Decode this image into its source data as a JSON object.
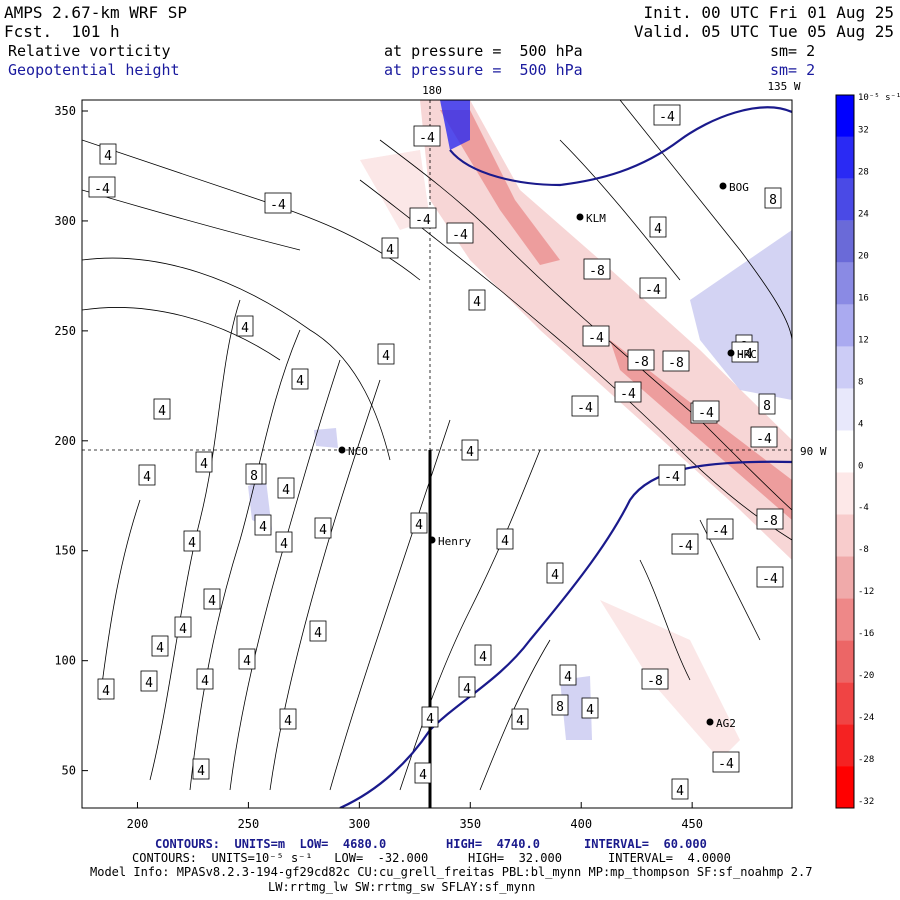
{
  "header": {
    "model": "AMPS 2.67-km WRF SP",
    "fcst": "Fcst.  101 h",
    "init": "Init. 00 UTC Fri 01 Aug 25",
    "valid": "Valid. 05 UTC Tue 05 Aug 25",
    "field1": "Relative vorticity",
    "field2": "Geopotential height",
    "pressure1": "at pressure =  500 hPa",
    "pressure2": "at pressure =  500 hPa",
    "sm1": "sm= 2",
    "sm2": "sm= 2"
  },
  "map": {
    "meridian_180": "180",
    "meridian_135": "135 W",
    "meridian_90": "90 W",
    "stations": [
      "NCO",
      "Henry",
      "KLM",
      "BOG",
      "HRC",
      "AG2"
    ]
  },
  "axes": {
    "x_ticks": [
      "200",
      "250",
      "300",
      "350",
      "400",
      "450"
    ],
    "y_ticks": [
      "350",
      "300",
      "250",
      "200",
      "150",
      "100",
      "50"
    ],
    "x_range": [
      175,
      495
    ],
    "y_range": [
      33,
      355
    ]
  },
  "colorbar": {
    "unit": "10⁻⁵ s⁻¹",
    "labels": [
      "32",
      "28",
      "24",
      "20",
      "16",
      "12",
      "8",
      "4",
      "0",
      "-4",
      "-8",
      "-12",
      "-16",
      "-20",
      "-24",
      "-28",
      "-32"
    ],
    "colors": [
      "#0000ff",
      "#2a2af4",
      "#4a4ae6",
      "#6a6ad8",
      "#8a8ae4",
      "#aaaaf0",
      "#ccccf6",
      "#e8e8fb",
      "#ffffff",
      "#fde8e8",
      "#f8cccc",
      "#f0aaaa",
      "#ee8888",
      "#ec6666",
      "#f04444",
      "#f52222",
      "#ff0000"
    ]
  },
  "contour_labels": {
    "height": [
      "4",
      "4",
      "4",
      "4",
      "4",
      "4",
      "4",
      "4",
      "4",
      "4",
      "4",
      "4",
      "4",
      "4",
      "4",
      "4",
      "4",
      "4",
      "4",
      "4",
      "4",
      "4",
      "4",
      "4",
      "4",
      "4",
      "4",
      "4",
      "4",
      "4",
      "4",
      "4",
      "4",
      "4",
      "4",
      "4",
      "4",
      "4",
      "8",
      "8",
      "8",
      "8",
      "8"
    ],
    "vorticity": [
      "-4",
      "-4",
      "-4",
      "-4",
      "-4",
      "-4",
      "-8",
      "-4",
      "-4",
      "-8",
      "-8",
      "-4",
      "-8",
      "-4",
      "-4",
      "-4",
      "-4",
      "-8",
      "-4",
      "-4",
      "-8",
      "-4",
      "-4",
      "-4"
    ]
  },
  "footer": {
    "line1_contours": "CONTOURS:  UNITS=m  LOW=  4680.0",
    "line1_high": "HIGH=  4740.0",
    "line1_interval": "INTERVAL=  60.000",
    "line2_contours": "CONTOURS:  UNITS=10⁻⁵ s⁻¹   LOW=  -32.000",
    "line2_high": "HIGH=  32.000",
    "line2_interval": "INTERVAL=  4.0000",
    "model_info": "Model Info: MPASv8.2.3-194-gf29cd82c CU:cu_grell_freitas PBL:bl_mynn MP:mp_thompson SF:sf_noahmp 2.7",
    "model_info2": "LW:rrtmg_lw SW:rrtmg_sw SFLAY:sf_mynn"
  }
}
